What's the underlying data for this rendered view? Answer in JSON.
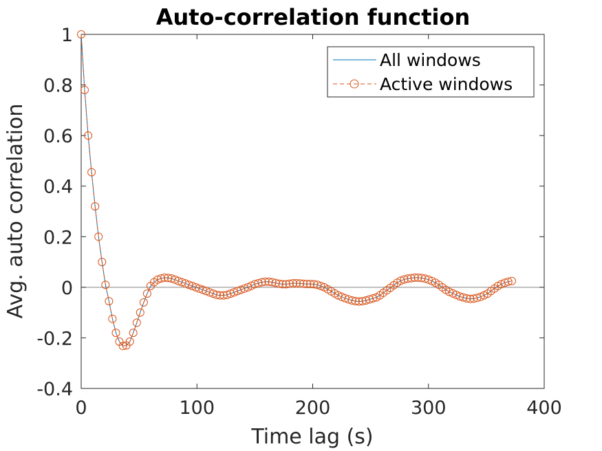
{
  "chart_data": {
    "type": "line",
    "title": "Auto-correlation function",
    "xlabel": "Time lag (s)",
    "ylabel": "Avg. auto correlation",
    "xlim": [
      0,
      400
    ],
    "ylim": [
      -0.4,
      1
    ],
    "xticks": [
      0,
      100,
      200,
      300,
      400
    ],
    "xtick_labels": [
      "0",
      "100",
      "200",
      "300",
      "400"
    ],
    "yticks": [
      -0.4,
      -0.2,
      0,
      0.2,
      0.4,
      0.6,
      0.8,
      1
    ],
    "ytick_labels": [
      "-0.4",
      "-0.2",
      "0",
      "0.2",
      "0.4",
      "0.6",
      "0.8",
      "1"
    ],
    "grid": false,
    "legend_position": "top-right",
    "zero_line": {
      "y": 0,
      "color": "#808080"
    },
    "x": [
      0,
      3,
      6,
      9,
      12,
      15,
      18,
      21,
      24,
      27,
      30,
      33,
      36,
      39,
      42,
      45,
      48,
      51,
      54,
      57,
      60,
      63,
      66,
      69,
      72,
      75,
      78,
      81,
      84,
      87,
      90,
      93,
      96,
      99,
      102,
      105,
      108,
      111,
      114,
      117,
      120,
      123,
      126,
      129,
      132,
      135,
      138,
      141,
      144,
      147,
      150,
      153,
      156,
      159,
      162,
      165,
      168,
      171,
      174,
      177,
      180,
      183,
      186,
      189,
      192,
      195,
      198,
      201,
      204,
      207,
      210,
      213,
      216,
      219,
      222,
      225,
      228,
      231,
      234,
      237,
      240,
      243,
      246,
      249,
      252,
      255,
      258,
      261,
      264,
      267,
      270,
      273,
      276,
      279,
      282,
      285,
      288,
      291,
      294,
      297,
      300,
      303,
      306,
      309,
      312,
      315,
      318,
      321,
      324,
      327,
      330,
      333,
      336,
      339,
      342,
      345,
      348,
      351,
      354,
      357,
      360,
      363,
      366,
      369,
      372
    ],
    "series": [
      {
        "name": "All windows",
        "color": "#0072BD",
        "style": "solid",
        "marker": "none",
        "values": [
          1.0,
          0.78,
          0.6,
          0.455,
          0.32,
          0.2,
          0.1,
          0.01,
          -0.055,
          -0.125,
          -0.18,
          -0.215,
          -0.232,
          -0.23,
          -0.215,
          -0.18,
          -0.14,
          -0.1,
          -0.06,
          -0.025,
          0.005,
          0.02,
          0.03,
          0.035,
          0.038,
          0.037,
          0.035,
          0.03,
          0.025,
          0.02,
          0.015,
          0.01,
          0.005,
          0.0,
          -0.005,
          -0.01,
          -0.015,
          -0.02,
          -0.025,
          -0.03,
          -0.032,
          -0.032,
          -0.03,
          -0.025,
          -0.02,
          -0.015,
          -0.01,
          -0.005,
          0.0,
          0.006,
          0.012,
          0.016,
          0.02,
          0.022,
          0.022,
          0.02,
          0.017,
          0.014,
          0.012,
          0.012,
          0.014,
          0.016,
          0.016,
          0.015,
          0.014,
          0.013,
          0.013,
          0.012,
          0.01,
          0.005,
          0.0,
          -0.008,
          -0.016,
          -0.024,
          -0.032,
          -0.038,
          -0.043,
          -0.048,
          -0.052,
          -0.055,
          -0.056,
          -0.055,
          -0.052,
          -0.048,
          -0.044,
          -0.04,
          -0.032,
          -0.022,
          -0.012,
          -0.002,
          0.008,
          0.018,
          0.026,
          0.031,
          0.034,
          0.036,
          0.038,
          0.038,
          0.037,
          0.034,
          0.03,
          0.025,
          0.018,
          0.01,
          0.0,
          -0.01,
          -0.018,
          -0.024,
          -0.03,
          -0.036,
          -0.04,
          -0.044,
          -0.046,
          -0.045,
          -0.042,
          -0.038,
          -0.032,
          -0.025,
          -0.015,
          -0.005,
          0.005,
          0.012,
          0.018,
          0.022,
          0.025
        ]
      },
      {
        "name": "Active windows",
        "color": "#D95319",
        "style": "dashed",
        "marker": "circle",
        "values": [
          1.0,
          0.78,
          0.6,
          0.455,
          0.32,
          0.2,
          0.1,
          0.01,
          -0.055,
          -0.125,
          -0.18,
          -0.215,
          -0.232,
          -0.23,
          -0.215,
          -0.18,
          -0.14,
          -0.1,
          -0.06,
          -0.025,
          0.005,
          0.02,
          0.03,
          0.035,
          0.038,
          0.037,
          0.035,
          0.03,
          0.025,
          0.02,
          0.015,
          0.01,
          0.005,
          0.0,
          -0.005,
          -0.01,
          -0.015,
          -0.02,
          -0.025,
          -0.03,
          -0.032,
          -0.032,
          -0.03,
          -0.025,
          -0.02,
          -0.015,
          -0.01,
          -0.005,
          0.0,
          0.006,
          0.012,
          0.016,
          0.02,
          0.022,
          0.022,
          0.02,
          0.017,
          0.014,
          0.012,
          0.012,
          0.014,
          0.016,
          0.016,
          0.015,
          0.014,
          0.013,
          0.013,
          0.012,
          0.01,
          0.005,
          0.0,
          -0.008,
          -0.016,
          -0.024,
          -0.032,
          -0.038,
          -0.043,
          -0.048,
          -0.052,
          -0.055,
          -0.056,
          -0.055,
          -0.052,
          -0.048,
          -0.044,
          -0.04,
          -0.032,
          -0.022,
          -0.012,
          -0.002,
          0.008,
          0.018,
          0.026,
          0.031,
          0.034,
          0.036,
          0.038,
          0.038,
          0.037,
          0.034,
          0.03,
          0.025,
          0.018,
          0.01,
          0.0,
          -0.01,
          -0.018,
          -0.024,
          -0.03,
          -0.036,
          -0.04,
          -0.044,
          -0.046,
          -0.045,
          -0.042,
          -0.038,
          -0.032,
          -0.025,
          -0.015,
          -0.005,
          0.005,
          0.012,
          0.018,
          0.022,
          0.025
        ]
      }
    ]
  }
}
